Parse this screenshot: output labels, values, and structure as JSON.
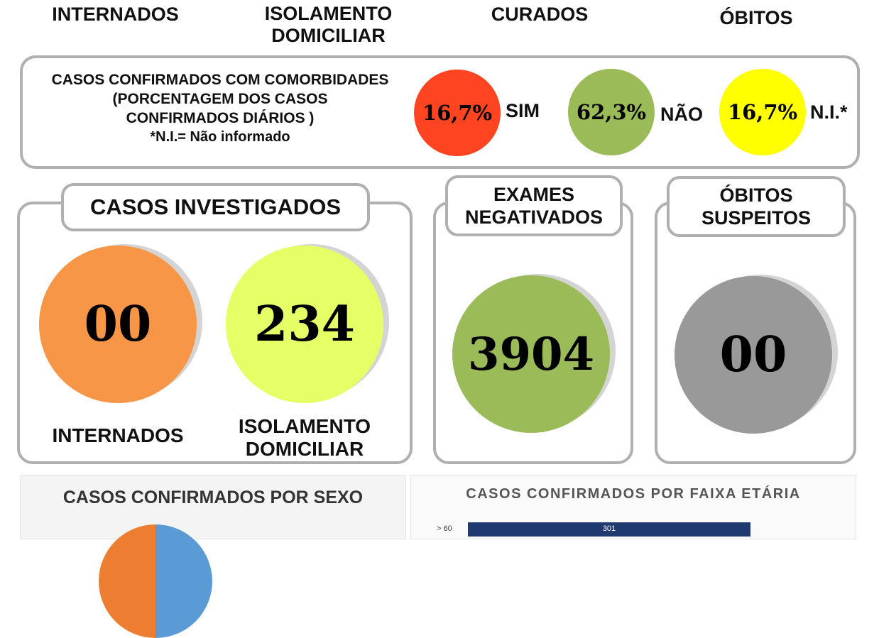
{
  "top_headers": {
    "internados": "INTERNADOS",
    "isolamento": "ISOLAMENTO\nDOMICILIAR",
    "curados": "CURADOS",
    "obitos": "ÓBITOS"
  },
  "comorbidades": {
    "title_line1": "CASOS CONFIRMADOS COM COMORBIDADES",
    "title_line2": "(PORCENTAGEM DOS CASOS",
    "title_line3": "CONFIRMADOS DIÁRIOS )",
    "note": "*N.I.= Não informado",
    "sim": {
      "value": "16,7%",
      "label": "SIM",
      "color": "#ff4422"
    },
    "nao": {
      "value": "62,3%",
      "label": "NÃO",
      "color": "#9bbb59"
    },
    "ni": {
      "value": "16,7%",
      "label": "N.I.*",
      "color": "#ffff00"
    }
  },
  "investigados": {
    "title": "CASOS INVESTIGADOS",
    "internados": {
      "value": "00",
      "label": "INTERNADOS",
      "color": "#f79646"
    },
    "isolamento": {
      "value": "234",
      "label_line1": "ISOLAMENTO",
      "label_line2": "DOMICILIAR",
      "color": "#e6ff66"
    }
  },
  "negativados": {
    "title_line1": "EXAMES",
    "title_line2": "NEGATIVADOS",
    "value": "3904",
    "color": "#9bbb59"
  },
  "obitos_suspeitos": {
    "title_line1": "ÓBITOS",
    "title_line2": "SUSPEITOS",
    "value": "00",
    "color": "#999999"
  },
  "sexo_panel": {
    "title": "CASOS CONFIRMADOS POR SEXO"
  },
  "faixa_panel": {
    "title": "CASOS CONFIRMADOS POR FAIXA ETÁRIA",
    "first_row_label": "> 60",
    "first_row_value": "301"
  }
}
